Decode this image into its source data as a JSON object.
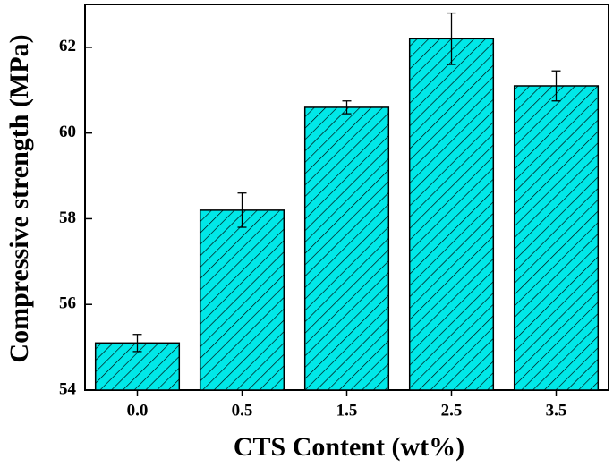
{
  "chart_data": {
    "type": "bar",
    "x_label": "CTS Content (wt%)",
    "y_label": "Compressive strength (MPa)",
    "categories": [
      "0.0",
      "0.5",
      "1.5",
      "2.5",
      "3.5"
    ],
    "values": [
      55.1,
      58.2,
      60.6,
      62.2,
      61.1
    ],
    "errors": [
      0.2,
      0.4,
      0.15,
      0.6,
      0.35
    ],
    "color": "#00e8e8",
    "ylim": [
      54,
      63
    ],
    "yticks": [
      54,
      56,
      58,
      60,
      62
    ]
  }
}
